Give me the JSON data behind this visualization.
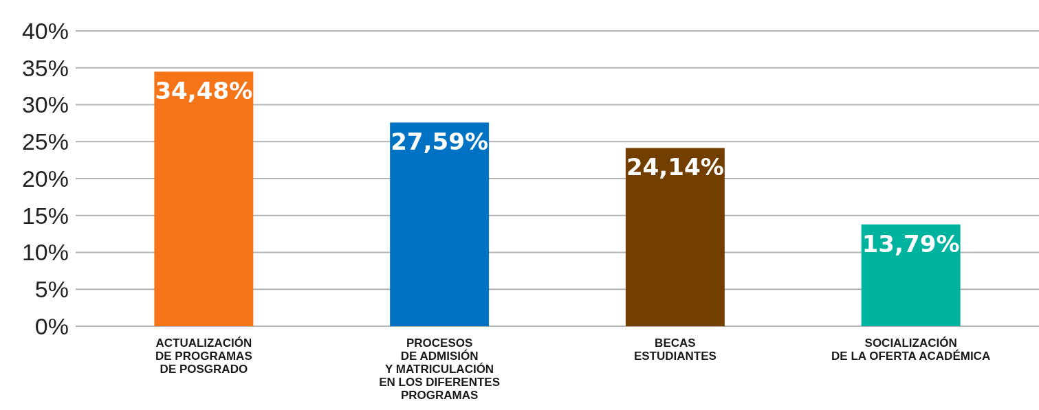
{
  "chart_data": {
    "type": "bar",
    "categories": [
      "ACTUALIZACIÓN\nDE PROGRAMAS\nDE POSGRADO",
      "PROCESOS\nDE ADMISIÓN\nY MATRICULACIÓN\nEN LOS DIFERENTES\nPROGRAMAS",
      "BECAS\nESTUDIANTES",
      "SOCIALIZACIÓN\nDE LA OFERTA ACADÉMICA"
    ],
    "values": [
      34.48,
      27.59,
      24.14,
      13.79
    ],
    "colors": [
      "#f57418",
      "#0072c3",
      "#723f00",
      "#00b39f"
    ],
    "value_labels": [
      "34,48%",
      "27,59%",
      "24,14%",
      "13,79%"
    ],
    "ylim": [
      0,
      40
    ],
    "yticks": [
      {
        "value": 0,
        "label": "0%"
      },
      {
        "value": 5,
        "label": "5%"
      },
      {
        "value": 10,
        "label": "10%"
      },
      {
        "value": 15,
        "label": "15%"
      },
      {
        "value": 20,
        "label": "20%"
      },
      {
        "value": 25,
        "label": "25%"
      },
      {
        "value": 30,
        "label": "30%"
      },
      {
        "value": 35,
        "label": "35%"
      },
      {
        "value": 40,
        "label": "40%"
      }
    ],
    "grid": "y"
  }
}
